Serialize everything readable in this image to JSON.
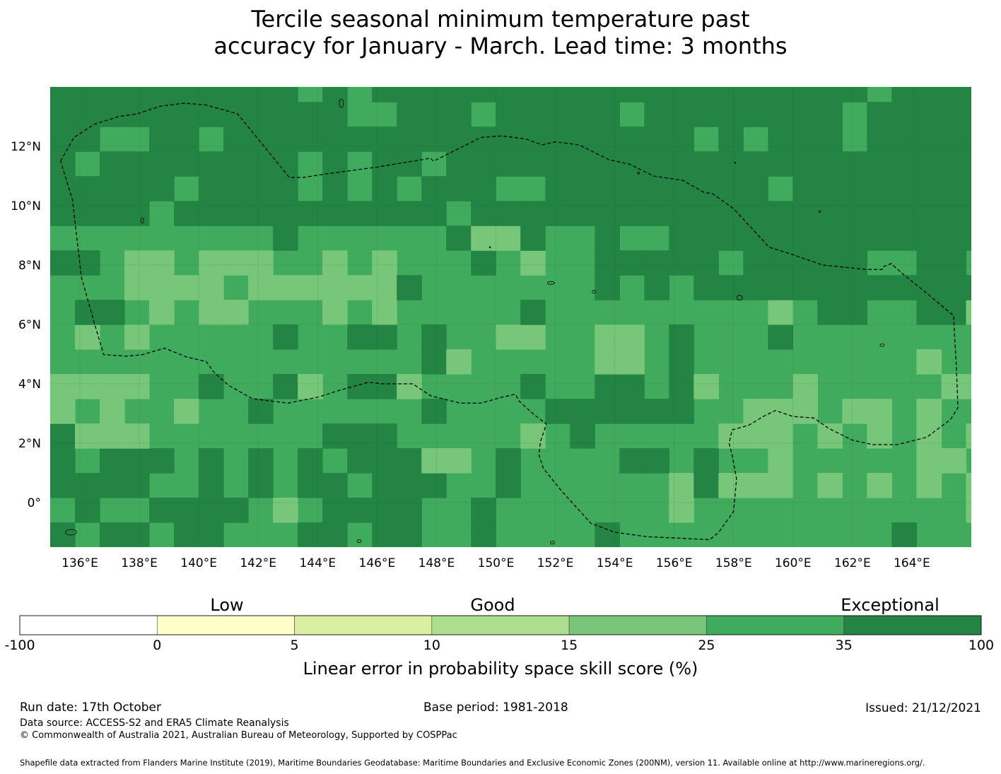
{
  "title": {
    "line1": "Tercile seasonal minimum temperature past",
    "line2": "accuracy for January - March. Lead time: 3 months"
  },
  "map": {
    "lon_range": [
      135.0,
      166.0
    ],
    "lat_range": [
      -1.5,
      14.0
    ],
    "x_ticks": [
      {
        "lon": 136,
        "label": "136°E"
      },
      {
        "lon": 138,
        "label": "138°E"
      },
      {
        "lon": 140,
        "label": "140°E"
      },
      {
        "lon": 142,
        "label": "142°E"
      },
      {
        "lon": 144,
        "label": "144°E"
      },
      {
        "lon": 146,
        "label": "146°E"
      },
      {
        "lon": 148,
        "label": "148°E"
      },
      {
        "lon": 150,
        "label": "150°E"
      },
      {
        "lon": 152,
        "label": "152°E"
      },
      {
        "lon": 154,
        "label": "154°E"
      },
      {
        "lon": 156,
        "label": "156°E"
      },
      {
        "lon": 158,
        "label": "158°E"
      },
      {
        "lon": 160,
        "label": "160°E"
      },
      {
        "lon": 162,
        "label": "162°E"
      },
      {
        "lon": 164,
        "label": "164°E"
      }
    ],
    "y_ticks": [
      {
        "lat": 12,
        "label": "12°N"
      },
      {
        "lat": 10,
        "label": "10°N"
      },
      {
        "lat": 8,
        "label": "8°N"
      },
      {
        "lat": 6,
        "label": "6°N"
      },
      {
        "lat": 4,
        "label": "4°N"
      },
      {
        "lat": 2,
        "label": "2°N"
      },
      {
        "lat": 0,
        "label": "0°"
      }
    ],
    "eez_boundary_lonlat": [
      [
        135.35,
        11.5
      ],
      [
        135.8,
        12.3
      ],
      [
        136.5,
        12.75
      ],
      [
        137.3,
        13.0
      ],
      [
        137.95,
        13.1
      ],
      [
        138.7,
        13.35
      ],
      [
        139.5,
        13.45
      ],
      [
        140.2,
        13.4
      ],
      [
        141.3,
        13.1
      ],
      [
        143.05,
        10.95
      ],
      [
        143.5,
        10.95
      ],
      [
        144.5,
        11.1
      ],
      [
        146.0,
        11.3
      ],
      [
        147.8,
        11.6
      ],
      [
        147.9,
        11.5
      ],
      [
        148.5,
        11.8
      ],
      [
        149.5,
        12.3
      ],
      [
        150.2,
        12.35
      ],
      [
        151.0,
        12.25
      ],
      [
        151.55,
        12.05
      ],
      [
        152.0,
        12.15
      ],
      [
        152.8,
        12.05
      ],
      [
        153.8,
        11.55
      ],
      [
        154.5,
        11.4
      ],
      [
        155.3,
        11.0
      ],
      [
        156.3,
        10.85
      ],
      [
        157.0,
        10.45
      ],
      [
        157.3,
        10.4
      ],
      [
        158.0,
        9.9
      ],
      [
        159.2,
        8.6
      ],
      [
        160.0,
        8.35
      ],
      [
        161.0,
        8.0
      ],
      [
        162.5,
        7.85
      ],
      [
        163.0,
        7.85
      ],
      [
        163.05,
        7.95
      ],
      [
        163.3,
        8.05
      ],
      [
        163.7,
        7.7
      ],
      [
        164.5,
        7.05
      ],
      [
        165.4,
        6.3
      ],
      [
        165.5,
        4.5
      ],
      [
        165.55,
        3.2
      ],
      [
        165.3,
        2.8
      ],
      [
        164.5,
        2.2
      ],
      [
        163.5,
        1.95
      ],
      [
        162.7,
        1.95
      ],
      [
        162.0,
        2.1
      ],
      [
        161.2,
        2.5
      ],
      [
        160.7,
        2.85
      ],
      [
        160.0,
        2.9
      ],
      [
        159.4,
        3.1
      ],
      [
        159.0,
        2.9
      ],
      [
        158.5,
        2.6
      ],
      [
        157.95,
        2.45
      ],
      [
        157.85,
        2.0
      ],
      [
        157.95,
        1.6
      ],
      [
        158.1,
        0.8
      ],
      [
        158.0,
        -0.3
      ],
      [
        157.5,
        -1.0
      ],
      [
        157.2,
        -1.25
      ],
      [
        156.2,
        -1.2
      ],
      [
        155.1,
        -1.15
      ],
      [
        154.0,
        -1.0
      ],
      [
        153.2,
        -0.7
      ],
      [
        152.7,
        -0.15
      ],
      [
        152.2,
        0.4
      ],
      [
        151.6,
        1.15
      ],
      [
        151.45,
        1.6
      ],
      [
        151.5,
        2.05
      ],
      [
        151.7,
        2.65
      ],
      [
        151.3,
        2.95
      ],
      [
        150.8,
        3.4
      ],
      [
        150.65,
        3.65
      ],
      [
        150.2,
        3.55
      ],
      [
        149.5,
        3.35
      ],
      [
        148.8,
        3.35
      ],
      [
        147.8,
        3.6
      ],
      [
        147.2,
        4.0
      ],
      [
        146.7,
        4.0
      ],
      [
        146.2,
        4.0
      ],
      [
        145.7,
        4.05
      ],
      [
        144.8,
        3.8
      ],
      [
        144.0,
        3.55
      ],
      [
        143.0,
        3.35
      ],
      [
        141.8,
        3.5
      ],
      [
        141.0,
        3.95
      ],
      [
        140.5,
        4.4
      ],
      [
        140.25,
        4.75
      ],
      [
        139.6,
        4.9
      ],
      [
        138.85,
        5.2
      ],
      [
        138.1,
        4.98
      ],
      [
        137.6,
        4.93
      ],
      [
        136.8,
        4.98
      ],
      [
        136.5,
        6.0
      ],
      [
        136.05,
        7.6
      ],
      [
        135.75,
        10.2
      ],
      [
        135.35,
        11.5
      ]
    ]
  },
  "colorbar": {
    "headings": {
      "low": "Low",
      "good": "Good",
      "exceptional": "Exceptional"
    },
    "segments": [
      {
        "from": "-100",
        "to": "0",
        "color": "#ffffff"
      },
      {
        "from": "0",
        "to": "5",
        "color": "#ffffcc"
      },
      {
        "from": "5",
        "to": "10",
        "color": "#d9f0a3"
      },
      {
        "from": "10",
        "to": "15",
        "color": "#addd8e"
      },
      {
        "from": "15",
        "to": "25",
        "color": "#78c679"
      },
      {
        "from": "25",
        "to": "35",
        "color": "#41ab5d"
      },
      {
        "from": "35",
        "to": "100",
        "color": "#238443"
      }
    ],
    "ticks": [
      "-100",
      "0",
      "5",
      "10",
      "15",
      "25",
      "35",
      "100"
    ],
    "label": "Linear error in probability space skill score (%)"
  },
  "footer": {
    "run_date": "Run date: 17th October",
    "base_period": "Base period: 1981-2018",
    "issued": "Issued: 21/12/2021",
    "data_source": "Data source: ACCESS-S2 and ERA5 Climate Reanalysis",
    "copyright": "© Commonwealth of Australia 2021, Australian Bureau of Meteorology, Supported by COSPPac",
    "shapefile": "Shapefile data extracted from Flanders Marine Institute (2019), Maritime Boundaries Geodatabase: Maritime Boundaries and Exclusive Economic Zones (200NM), version 11. Available online at http://www.marineregions.org/."
  }
}
